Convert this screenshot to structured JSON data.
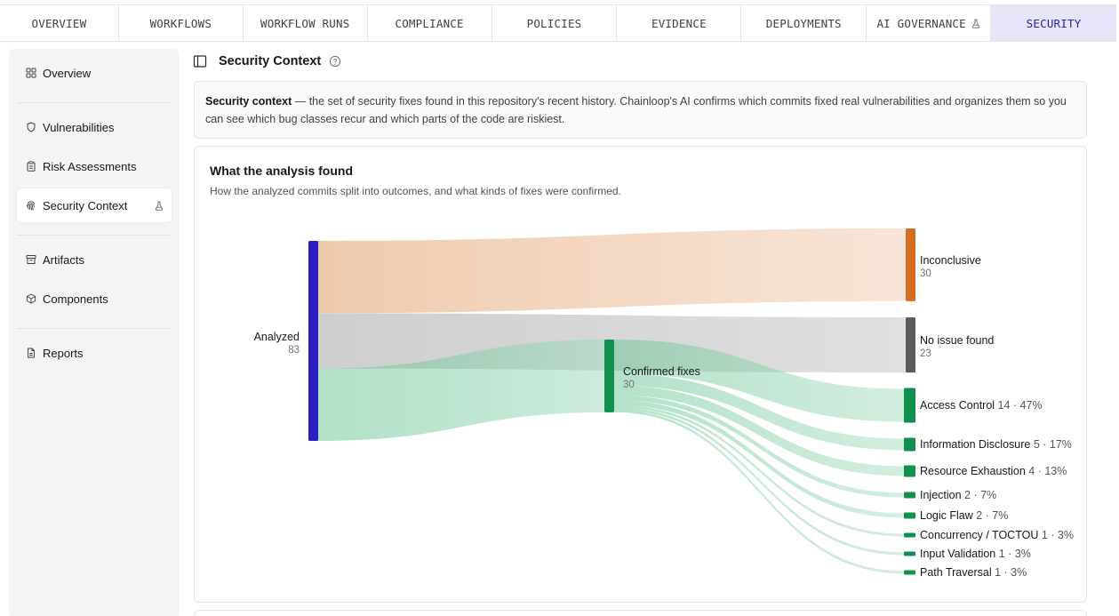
{
  "tabs": [
    {
      "label": "OVERVIEW"
    },
    {
      "label": "WORKFLOWS"
    },
    {
      "label": "WORKFLOW RUNS"
    },
    {
      "label": "COMPLIANCE"
    },
    {
      "label": "POLICIES"
    },
    {
      "label": "EVIDENCE"
    },
    {
      "label": "DEPLOYMENTS"
    },
    {
      "label": "AI GOVERNANCE"
    },
    {
      "label": "SECURITY"
    }
  ],
  "sidebar": {
    "items": [
      {
        "label": "Overview",
        "icon": "grid-icon"
      },
      {
        "label": "Vulnerabilities",
        "icon": "shield-icon"
      },
      {
        "label": "Risk Assessments",
        "icon": "clipboard-icon"
      },
      {
        "label": "Security Context",
        "icon": "fingerprint-icon"
      },
      {
        "label": "Artifacts",
        "icon": "archive-icon"
      },
      {
        "label": "Components",
        "icon": "box-icon"
      },
      {
        "label": "Reports",
        "icon": "file-icon"
      }
    ]
  },
  "header": {
    "title": "Security Context"
  },
  "info": {
    "term": "Security context",
    "text": " — the set of security fixes found in this repository's recent history. Chainloop's AI confirms which commits fixed real vulnerabilities and organizes them so you can see which bug classes recur and which parts of the code are riskiest."
  },
  "analysis": {
    "title": "What the analysis found",
    "subtitle": "How the analyzed commits split into outcomes, and what kinds of fixes were confirmed."
  },
  "colors": {
    "analyzed": "#2a1fc0",
    "inconclusive": "#d46e22",
    "no_issue": "#5b5b5e",
    "confirmed": "#12904d",
    "accent_tab": "#e6e6f8"
  },
  "chart_data": {
    "type": "sankey",
    "nodes": [
      {
        "id": "analyzed",
        "name": "Analyzed",
        "value": "83"
      },
      {
        "id": "inconclusive",
        "name": "Inconclusive",
        "value": "30"
      },
      {
        "id": "no_issue",
        "name": "No issue found",
        "value": "23"
      },
      {
        "id": "confirmed",
        "name": "Confirmed fixes",
        "value": "30"
      },
      {
        "id": "access_control",
        "name": "Access Control",
        "value": "14 · 47%"
      },
      {
        "id": "information_disclosure",
        "name": "Information Disclosure",
        "value": "5 · 17%"
      },
      {
        "id": "resource_exhaustion",
        "name": "Resource Exhaustion",
        "value": "4 · 13%"
      },
      {
        "id": "injection",
        "name": "Injection",
        "value": "2 · 7%"
      },
      {
        "id": "logic_flaw",
        "name": "Logic Flaw",
        "value": "2 · 7%"
      },
      {
        "id": "concurrency",
        "name": "Concurrency / TOCTOU",
        "value": "1 · 3%"
      },
      {
        "id": "input_validation",
        "name": "Input Validation",
        "value": "1 · 3%"
      },
      {
        "id": "path_traversal",
        "name": "Path Traversal",
        "value": "1 · 3%"
      }
    ],
    "links": [
      {
        "source": "analyzed",
        "target": "inconclusive",
        "value": 30
      },
      {
        "source": "analyzed",
        "target": "no_issue",
        "value": 23
      },
      {
        "source": "analyzed",
        "target": "confirmed",
        "value": 30
      },
      {
        "source": "confirmed",
        "target": "access_control",
        "value": 14
      },
      {
        "source": "confirmed",
        "target": "information_disclosure",
        "value": 5
      },
      {
        "source": "confirmed",
        "target": "resource_exhaustion",
        "value": 4
      },
      {
        "source": "confirmed",
        "target": "injection",
        "value": 2
      },
      {
        "source": "confirmed",
        "target": "logic_flaw",
        "value": 2
      },
      {
        "source": "confirmed",
        "target": "concurrency",
        "value": 1
      },
      {
        "source": "confirmed",
        "target": "input_validation",
        "value": 1
      },
      {
        "source": "confirmed",
        "target": "path_traversal",
        "value": 1
      }
    ]
  }
}
